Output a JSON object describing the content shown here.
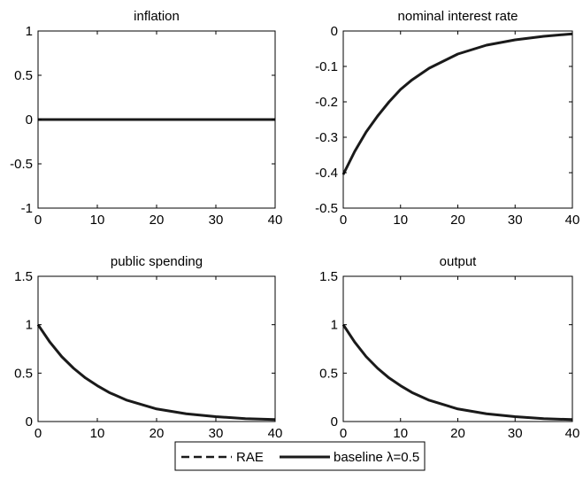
{
  "chart_data": [
    {
      "type": "line",
      "title": "inflation",
      "xlabel": "",
      "ylabel": "",
      "xlim": [
        0,
        40
      ],
      "ylim": [
        -1,
        1
      ],
      "xticks": [
        0,
        10,
        20,
        30,
        40
      ],
      "yticks": [
        -1,
        -0.5,
        0,
        0.5,
        1
      ],
      "ytick_labels": [
        "-1",
        "-0.5",
        "0",
        "0.5",
        "1"
      ],
      "series": [
        {
          "name": "RAE",
          "style": "dashed",
          "x": [
            0,
            5,
            10,
            15,
            20,
            25,
            30,
            35,
            40
          ],
          "y": [
            0,
            0,
            0,
            0,
            0,
            0,
            0,
            0,
            0
          ]
        },
        {
          "name": "baseline λ=0.5",
          "style": "solid",
          "x": [
            0,
            5,
            10,
            15,
            20,
            25,
            30,
            35,
            40
          ],
          "y": [
            0,
            0,
            0,
            0,
            0,
            0,
            0,
            0,
            0
          ]
        }
      ]
    },
    {
      "type": "line",
      "title": "nominal interest rate",
      "xlabel": "",
      "ylabel": "",
      "xlim": [
        0,
        40
      ],
      "ylim": [
        -0.5,
        0
      ],
      "xticks": [
        0,
        10,
        20,
        30,
        40
      ],
      "yticks": [
        -0.5,
        -0.4,
        -0.3,
        -0.2,
        -0.1,
        0
      ],
      "ytick_labels": [
        "-0.5",
        "-0.4",
        "-0.3",
        "-0.2",
        "-0.1",
        "0"
      ],
      "series": [
        {
          "name": "RAE",
          "style": "dashed",
          "x": [
            0,
            2,
            4,
            6,
            8,
            10,
            12,
            15,
            20,
            25,
            30,
            35,
            40
          ],
          "y": [
            -0.405,
            -0.34,
            -0.285,
            -0.24,
            -0.2,
            -0.165,
            -0.138,
            -0.105,
            -0.065,
            -0.04,
            -0.025,
            -0.015,
            -0.008
          ]
        },
        {
          "name": "baseline λ=0.5",
          "style": "solid",
          "x": [
            0,
            2,
            4,
            6,
            8,
            10,
            12,
            15,
            20,
            25,
            30,
            35,
            40
          ],
          "y": [
            -0.405,
            -0.34,
            -0.285,
            -0.24,
            -0.2,
            -0.165,
            -0.138,
            -0.105,
            -0.065,
            -0.04,
            -0.025,
            -0.015,
            -0.008
          ]
        }
      ]
    },
    {
      "type": "line",
      "title": "public spending",
      "xlabel": "",
      "ylabel": "",
      "xlim": [
        0,
        40
      ],
      "ylim": [
        0,
        1.5
      ],
      "xticks": [
        0,
        10,
        20,
        30,
        40
      ],
      "yticks": [
        0,
        0.5,
        1,
        1.5
      ],
      "ytick_labels": [
        "0",
        "0.5",
        "1",
        "1.5"
      ],
      "series": [
        {
          "name": "RAE",
          "style": "dashed",
          "x": [
            0,
            2,
            4,
            6,
            8,
            10,
            12,
            15,
            20,
            25,
            30,
            35,
            40
          ],
          "y": [
            1.0,
            0.82,
            0.67,
            0.55,
            0.45,
            0.37,
            0.3,
            0.22,
            0.13,
            0.08,
            0.05,
            0.03,
            0.02
          ]
        },
        {
          "name": "baseline λ=0.5",
          "style": "solid",
          "x": [
            0,
            2,
            4,
            6,
            8,
            10,
            12,
            15,
            20,
            25,
            30,
            35,
            40
          ],
          "y": [
            1.0,
            0.82,
            0.67,
            0.55,
            0.45,
            0.37,
            0.3,
            0.22,
            0.13,
            0.08,
            0.05,
            0.03,
            0.02
          ]
        }
      ]
    },
    {
      "type": "line",
      "title": "output",
      "xlabel": "",
      "ylabel": "",
      "xlim": [
        0,
        40
      ],
      "ylim": [
        0,
        1.5
      ],
      "xticks": [
        0,
        10,
        20,
        30,
        40
      ],
      "yticks": [
        0,
        0.5,
        1,
        1.5
      ],
      "ytick_labels": [
        "0",
        "0.5",
        "1",
        "1.5"
      ],
      "series": [
        {
          "name": "RAE",
          "style": "dashed",
          "x": [
            0,
            2,
            4,
            6,
            8,
            10,
            12,
            15,
            20,
            25,
            30,
            35,
            40
          ],
          "y": [
            1.0,
            0.82,
            0.67,
            0.55,
            0.45,
            0.37,
            0.3,
            0.22,
            0.13,
            0.08,
            0.05,
            0.03,
            0.02
          ]
        },
        {
          "name": "baseline λ=0.5",
          "style": "solid",
          "x": [
            0,
            2,
            4,
            6,
            8,
            10,
            12,
            15,
            20,
            25,
            30,
            35,
            40
          ],
          "y": [
            1.0,
            0.82,
            0.67,
            0.55,
            0.45,
            0.37,
            0.3,
            0.22,
            0.13,
            0.08,
            0.05,
            0.03,
            0.02
          ]
        }
      ]
    }
  ],
  "legend": {
    "placement": "bottom-center",
    "entries": [
      {
        "label": "RAE",
        "style": "dashed"
      },
      {
        "label": "baseline λ=0.5",
        "style": "solid"
      }
    ]
  },
  "colors": {
    "line": "#1a1a1a",
    "axes": "#000000",
    "background": "#ffffff"
  }
}
